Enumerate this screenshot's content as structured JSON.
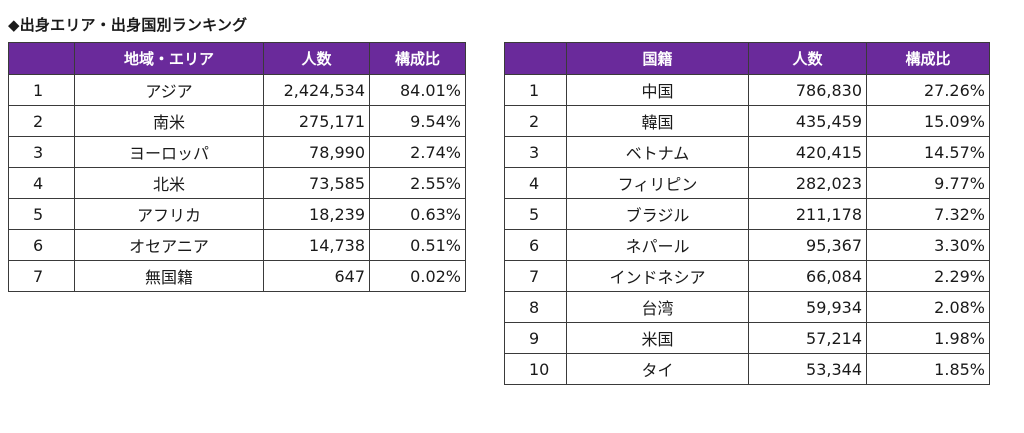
{
  "title": "◆出身エリア・出身国別ランキング",
  "area_table": {
    "headers": [
      "",
      "地域・エリア",
      "人数",
      "構成比"
    ],
    "rows": [
      [
        "1",
        "アジア",
        "2,424,534",
        "84.01%"
      ],
      [
        "2",
        "南米",
        "275,171",
        "9.54%"
      ],
      [
        "3",
        "ヨーロッパ",
        "78,990",
        "2.74%"
      ],
      [
        "4",
        "北米",
        "73,585",
        "2.55%"
      ],
      [
        "5",
        "アフリカ",
        "18,239",
        "0.63%"
      ],
      [
        "6",
        "オセアニア",
        "14,738",
        "0.51%"
      ],
      [
        "7",
        "無国籍",
        "647",
        "0.02%"
      ]
    ]
  },
  "country_table": {
    "headers": [
      "",
      "国籍",
      "人数",
      "構成比"
    ],
    "rows": [
      [
        "1",
        "中国",
        "786,830",
        "27.26%"
      ],
      [
        "2",
        "韓国",
        "435,459",
        "15.09%"
      ],
      [
        "3",
        "ベトナム",
        "420,415",
        "14.57%"
      ],
      [
        "4",
        "フィリピン",
        "282,023",
        "9.77%"
      ],
      [
        "5",
        "ブラジル",
        "211,178",
        "7.32%"
      ],
      [
        "6",
        "ネパール",
        "95,367",
        "3.30%"
      ],
      [
        "7",
        "インドネシア",
        "66,084",
        "2.29%"
      ],
      [
        "8",
        "台湾",
        "59,934",
        "2.08%"
      ],
      [
        "9",
        "米国",
        "57,214",
        "1.98%"
      ],
      [
        "10",
        "タイ",
        "53,344",
        "1.85%"
      ]
    ]
  },
  "colors": {
    "header_bg": "#6a2a9b",
    "header_text": "#ffffff",
    "border": "#3a3a3a"
  }
}
